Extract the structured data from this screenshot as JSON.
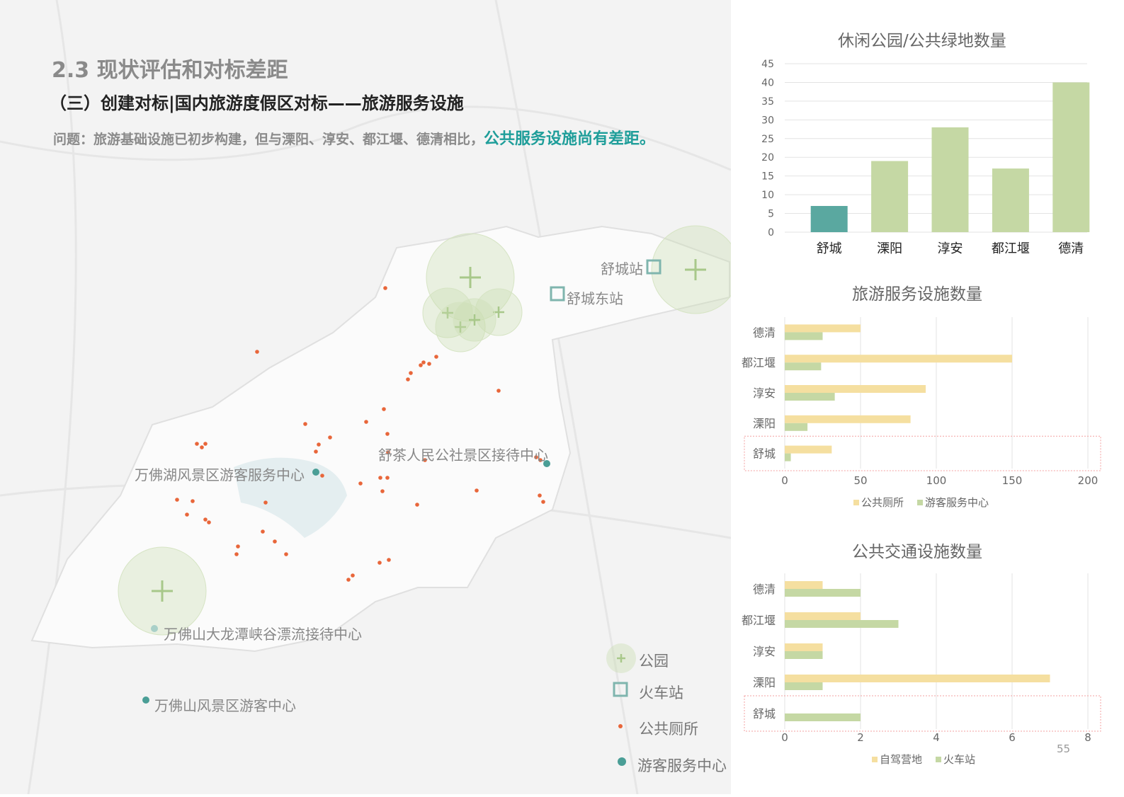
{
  "header": {
    "section": "2.3 现状评估和对标差距",
    "subtitle": "（三）创建对标|国内旅游度假区对标——旅游服务设施",
    "question_prefix": "问题：旅游基础设施已初步构建，但与溧阳、淳安、都江堰、德清相比，",
    "question_highlight": "公共服务设施尚有差距。"
  },
  "map": {
    "labels": {
      "shucheng_station": "舒城站",
      "shucheng_east": "舒城东站",
      "shucha": "舒茶人民公社景区接待中心",
      "wanfohu": "万佛湖风景区游客服务中心",
      "dalongtan": "万佛山大龙潭峡谷漂流接待中心",
      "wanfoshan": "万佛山风景区游客中心"
    },
    "legend": [
      {
        "label": "公园",
        "icon": "park-plus-icon"
      },
      {
        "label": "火车站",
        "icon": "square-icon"
      },
      {
        "label": "公共厕所",
        "icon": "dot-icon"
      },
      {
        "label": "游客服务中心",
        "icon": "teal-dot-icon"
      }
    ],
    "colors": {
      "toilet": "#e8663a",
      "visitor": "#4a9e96",
      "park": "#c9dcae"
    }
  },
  "page_number": "55",
  "chart_data": [
    {
      "type": "bar",
      "title": "休闲公园/公共绿地数量",
      "categories": [
        "舒城",
        "溧阳",
        "淳安",
        "都江堰",
        "德清"
      ],
      "values": [
        7,
        19,
        28,
        17,
        40
      ],
      "ylim": [
        0,
        45
      ],
      "yticks": [
        "0",
        "5",
        "10",
        "15",
        "20",
        "25",
        "30",
        "35",
        "40",
        "45"
      ],
      "colors": {
        "highlight": "#5aa8a0",
        "other": "#c5d8a4"
      }
    },
    {
      "type": "bar",
      "orientation": "horizontal",
      "title": "旅游服务设施数量",
      "categories": [
        "德清",
        "都江堰",
        "淳安",
        "溧阳",
        "舒城"
      ],
      "series": [
        {
          "name": "公共厕所",
          "values": [
            50,
            150,
            93,
            83,
            31
          ],
          "color": "#f5dfa0"
        },
        {
          "name": "游客服务中心",
          "values": [
            25,
            24,
            33,
            15,
            4
          ],
          "color": "#c5d8a4"
        }
      ],
      "xlim": [
        0,
        200
      ],
      "xticks": [
        "0",
        "50",
        "100",
        "150",
        "200"
      ],
      "legend": "bottom",
      "highlight": "舒城"
    },
    {
      "type": "bar",
      "orientation": "horizontal",
      "title": "公共交通设施数量",
      "categories": [
        "德清",
        "都江堰",
        "淳安",
        "溧阳",
        "舒城"
      ],
      "series": [
        {
          "name": "自驾营地",
          "values": [
            1,
            2,
            1,
            7,
            0
          ],
          "color": "#f5dfa0"
        },
        {
          "name": "火车站",
          "values": [
            2,
            3,
            1,
            1,
            2
          ],
          "color": "#c5d8a4"
        }
      ],
      "xlim": [
        0,
        8
      ],
      "xticks": [
        "0",
        "2",
        "4",
        "6",
        "8"
      ],
      "legend": "bottom",
      "highlight": "舒城"
    }
  ]
}
